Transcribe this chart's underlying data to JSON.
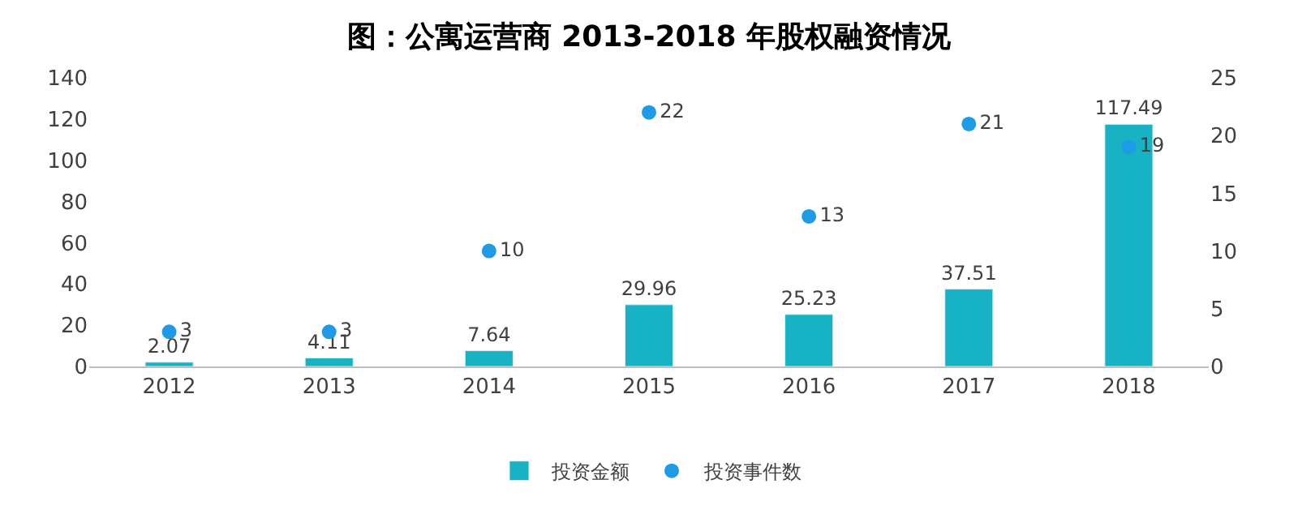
{
  "chart_data": {
    "type": "bar",
    "title": "图：公寓运营商 2013-2018 年股权融资情况",
    "categories": [
      "2012",
      "2013",
      "2014",
      "2015",
      "2016",
      "2017",
      "2018"
    ],
    "series": [
      {
        "name": "投资金额",
        "color": "#17b3c4",
        "values": [
          2.07,
          4.11,
          7.64,
          29.96,
          25.23,
          37.51,
          117.49
        ]
      },
      {
        "name": "投资事件数",
        "type": "scatter",
        "axis": "y2",
        "color": "#1e9ae6",
        "values": [
          3,
          3,
          10,
          22,
          13,
          21,
          19
        ]
      }
    ],
    "ylim": [
      0,
      140
    ],
    "yticks": [
      0,
      20,
      40,
      60,
      80,
      100,
      120,
      140
    ],
    "y2lim": [
      0,
      25
    ],
    "y2ticks": [
      0,
      5,
      10,
      15,
      20,
      25
    ],
    "data_labels": true,
    "legend": "bottom",
    "marker": "circle"
  }
}
